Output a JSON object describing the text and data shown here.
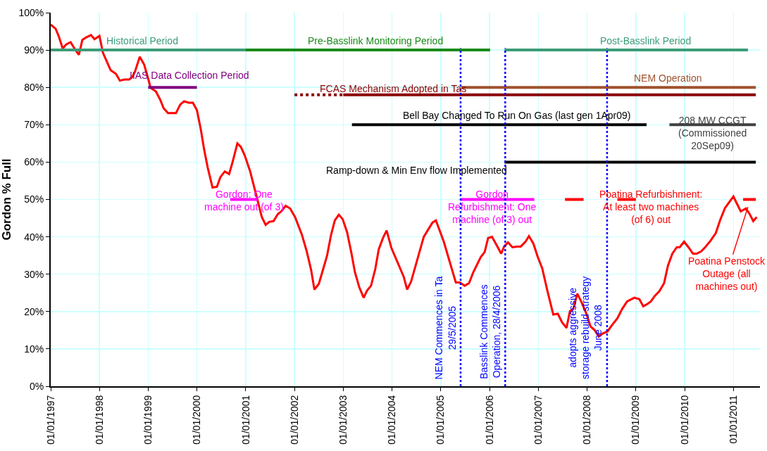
{
  "chart_data": {
    "type": "line",
    "ylabel": "Gordon % Full",
    "xlim": [
      "1997-01-01",
      "2011-07-19"
    ],
    "xticks": [
      {
        "value": "1997-01-01",
        "label": "01/01/1997"
      },
      {
        "value": "1998-01-01",
        "label": "01/01/1998"
      },
      {
        "value": "1999-01-01",
        "label": "01/01/1999"
      },
      {
        "value": "2000-01-01",
        "label": "01/01/2000"
      },
      {
        "value": "2001-01-01",
        "label": "01/01/2001"
      },
      {
        "value": "2002-01-01",
        "label": "01/01/2002"
      },
      {
        "value": "2003-01-01",
        "label": "01/01/2003"
      },
      {
        "value": "2004-01-01",
        "label": "01/01/2004"
      },
      {
        "value": "2005-01-01",
        "label": "01/01/2005"
      },
      {
        "value": "2006-01-01",
        "label": "01/01/2006"
      },
      {
        "value": "2007-01-01",
        "label": "01/01/2007"
      },
      {
        "value": "2008-01-01",
        "label": "01/01/2008"
      },
      {
        "value": "2009-01-01",
        "label": "01/01/2009"
      },
      {
        "value": "2010-01-01",
        "label": "01/01/2010"
      },
      {
        "value": "2011-01-01",
        "label": "01/01/2011"
      }
    ],
    "ylim": [
      0,
      100
    ],
    "yticks": [
      {
        "value": 0,
        "label": "0%"
      },
      {
        "value": 10,
        "label": "10%"
      },
      {
        "value": 20,
        "label": "20%"
      },
      {
        "value": 30,
        "label": "30%"
      },
      {
        "value": 40,
        "label": "40%"
      },
      {
        "value": 50,
        "label": "50%"
      },
      {
        "value": 60,
        "label": "60%"
      },
      {
        "value": 70,
        "label": "70%"
      },
      {
        "value": 80,
        "label": "80%"
      },
      {
        "value": 90,
        "label": "90%"
      },
      {
        "value": 100,
        "label": "100%"
      }
    ],
    "grid": true,
    "legend": false,
    "marker": "none",
    "line_style": "solid",
    "series": [
      {
        "color": "#ff0000",
        "x": [
          "1997-01-01",
          "1997-02-07",
          "1997-03-04",
          "1997-04-01",
          "1997-04-27",
          "1997-05-30",
          "1997-06-28",
          "1997-07-31",
          "1997-08-26",
          "1997-09-24",
          "1997-10-30",
          "1997-11-25",
          "1998-01-01",
          "1998-01-27",
          "1998-02-28",
          "1998-03-26",
          "1998-05-05",
          "1998-06-03",
          "1998-07-06",
          "1998-08-11",
          "1998-09-02",
          "1998-09-24",
          "1998-10-30",
          "1998-12-02",
          "1999-01-01",
          "1999-01-19",
          "1999-02-28",
          "1999-04-01",
          "1999-04-27",
          "1999-05-30",
          "1999-07-28",
          "1999-08-29",
          "1999-09-27",
          "1999-10-30",
          "1999-12-02",
          "2000-01-01",
          "2000-01-30",
          "2000-02-25",
          "2000-03-22",
          "2000-04-27",
          "2000-05-30",
          "2000-06-25",
          "2000-07-28",
          "2000-08-29",
          "2000-09-24",
          "2000-10-30",
          "2000-11-25",
          "2000-12-24",
          "2001-02-03",
          "2001-05-01",
          "2001-05-30",
          "2001-06-25",
          "2001-07-28",
          "2001-08-29",
          "2001-09-24",
          "2001-10-27",
          "2001-11-29",
          "2002-01-05",
          "2002-02-25",
          "2002-04-01",
          "2002-05-05",
          "2002-05-30",
          "2002-07-02",
          "2002-08-04",
          "2002-09-02",
          "2002-10-01",
          "2002-10-30",
          "2002-11-29",
          "2002-12-28",
          "2003-01-30",
          "2003-03-04",
          "2003-03-29",
          "2003-05-01",
          "2003-06-03",
          "2003-06-28",
          "2003-07-28",
          "2003-08-29",
          "2003-09-24",
          "2003-10-27",
          "2003-11-22",
          "2003-12-28",
          "2004-03-29",
          "2004-04-23",
          "2004-05-23",
          "2004-08-26",
          "2004-10-30",
          "2004-11-25",
          "2005-01-23",
          "2005-04-23",
          "2005-05-23",
          "2005-06-28",
          "2005-07-31",
          "2005-09-02",
          "2005-10-27",
          "2005-11-25",
          "2005-12-21",
          "2006-01-19",
          "2006-02-25",
          "2006-03-29",
          "2006-04-20",
          "2006-05-19",
          "2006-06-21",
          "2006-07-24",
          "2006-08-22",
          "2006-09-27",
          "2006-10-23",
          "2006-11-25",
          "2006-12-28",
          "2007-01-30",
          "2007-03-11",
          "2007-04-23",
          "2007-05-27",
          "2007-06-28",
          "2007-07-31",
          "2007-08-26",
          "2007-09-20",
          "2007-10-20",
          "2007-11-18",
          "2007-12-24",
          "2008-01-27",
          "2008-02-28",
          "2008-03-29",
          "2008-04-27",
          "2008-06-03",
          "2008-06-28",
          "2008-08-15",
          "2008-09-20",
          "2008-10-27",
          "2008-12-21",
          "2009-01-27",
          "2009-02-25",
          "2009-03-26",
          "2009-04-23",
          "2009-05-23",
          "2009-06-25",
          "2009-07-31",
          "2009-08-29",
          "2009-10-01",
          "2009-11-03",
          "2009-11-25",
          "2009-12-28",
          "2010-01-30",
          "2010-03-04",
          "2010-04-01",
          "2010-05-05",
          "2010-06-03",
          "2010-07-13",
          "2010-08-22",
          "2010-09-24",
          "2010-10-30",
          "2011-01-01",
          "2011-01-23",
          "2011-02-25",
          "2011-04-05",
          "2011-05-01",
          "2011-05-30",
          "2011-06-25"
        ],
        "values": [
          96.8,
          95.7,
          93.5,
          90.4,
          91.5,
          92.1,
          90.4,
          88.7,
          92.7,
          93.4,
          94,
          92.9,
          93.8,
          89.3,
          86.7,
          84.6,
          83.6,
          81.8,
          82.1,
          82.1,
          82.7,
          84.2,
          88.2,
          86.1,
          82.3,
          79.9,
          78.9,
          76.7,
          74.4,
          73.1,
          73.1,
          75.4,
          76.3,
          75.9,
          75.9,
          73.9,
          68.8,
          63.2,
          58.5,
          53.2,
          53.4,
          56,
          57.5,
          56.8,
          60,
          65,
          64.1,
          61.8,
          57.5,
          45.3,
          43.2,
          44,
          44.2,
          46.1,
          46.8,
          48.3,
          47.6,
          45.3,
          40.6,
          36.3,
          31.2,
          25.9,
          27.4,
          31.4,
          35,
          40.4,
          44.4,
          45.9,
          44.7,
          41.2,
          35.5,
          30.6,
          26.5,
          23.7,
          25.6,
          26.9,
          31.4,
          36.7,
          39.8,
          41.7,
          37,
          29.3,
          25.9,
          28,
          40,
          43.8,
          44.4,
          38.7,
          27.8,
          27.8,
          26.9,
          27.6,
          30.6,
          34.6,
          35.9,
          39.7,
          40,
          37.6,
          35.5,
          37.4,
          38.5,
          37.2,
          37.4,
          37.4,
          38.7,
          40.2,
          38.2,
          34.6,
          31.6,
          25.4,
          19.2,
          19.4,
          17.1,
          15.6,
          20.1,
          20.7,
          24.8,
          22.7,
          19.7,
          16,
          15,
          13.3,
          14.1,
          14.7,
          16,
          18.2,
          20.7,
          22.7,
          23.7,
          23.3,
          21.4,
          22,
          22.7,
          24.2,
          25.4,
          27.6,
          32.3,
          35.5,
          37.2,
          37.2,
          38.7,
          37.2,
          35.5,
          35.5,
          36.1,
          37.2,
          38.9,
          41,
          44.5,
          47.7,
          50.8,
          49.2,
          46.8,
          47.6,
          46.2,
          44.2,
          45.3
        ]
      },
      {
        "name": "Historical Period",
        "color": "#3c9c78",
        "x": [
          "1997-01-01",
          "2001-01-01"
        ],
        "values": [
          90,
          90
        ]
      },
      {
        "name": "Pre-Basslink Monitoring Period",
        "color": "#1a8a1a",
        "x": [
          "2001-01-01",
          "2006-01-05"
        ],
        "values": [
          90,
          90
        ]
      },
      {
        "name": "Post-Basslink Period",
        "color": "#3c9c78",
        "x": [
          "2006-04-23",
          "2011-04-20"
        ],
        "values": [
          90,
          90
        ]
      },
      {
        "name": "IIAS Data Collection Period",
        "color": "#800080",
        "x": [
          "1999-01-01",
          "2000-01-01"
        ],
        "values": [
          80,
          80
        ]
      },
      {
        "color": "#8b0000",
        "line_style": "dotted",
        "x": [
          "2002-01-01",
          "2003-01-01"
        ],
        "values": [
          78,
          78
        ]
      },
      {
        "name": "FCAS Mechanism Adopted in Tas",
        "color": "#8b0000",
        "x": [
          "2003-01-01",
          "2011-06-18"
        ],
        "values": [
          78,
          78
        ]
      },
      {
        "name": "NEM Operation",
        "color": "#a0522d",
        "x": [
          "2005-06-03",
          "2011-06-18"
        ],
        "values": [
          80,
          80
        ]
      },
      {
        "name": "Bell Bay Changed To Run On Gas (last gen 1Apr09)",
        "color": "#000000",
        "x": [
          "2003-03-07",
          "2009-03-22"
        ],
        "values": [
          70,
          70
        ]
      },
      {
        "name": "208 MW CCGT\n(Commissioned\n20Sep09)",
        "color": "#404040",
        "x": [
          "2009-09-09",
          "2011-06-18"
        ],
        "values": [
          70,
          70
        ]
      },
      {
        "name": "Ramp-down & Min Env flow Implemented",
        "color": "#000000",
        "x": [
          "2006-04-23",
          "2011-06-18"
        ],
        "values": [
          60,
          60
        ]
      },
      {
        "name": "Gordon: One\nmachine out (of 3)",
        "color": "#ff00ff",
        "x": [
          "2000-09-06",
          "2001-04-01"
        ],
        "values": [
          50,
          50
        ]
      },
      {
        "name": "Gordon\nRefurbishment: One\nmachine (of 3) out",
        "color": "#ff00ff",
        "x": [
          "2005-05-30",
          "2006-12-02"
        ],
        "values": [
          50,
          50
        ]
      },
      {
        "name": "Poatina Refurbishment:\nAt least two machines\n(of 6) out",
        "color": "#ff0000",
        "x": [
          "2007-07-20",
          "2007-12-06",
          "2007-12-09",
          "2008-08-15",
          "2009-01-01",
          "2009-01-05",
          "2011-03-15",
          "2011-06-18"
        ],
        "values": [
          50,
          50,
          null,
          50,
          50,
          null,
          50,
          50
        ]
      }
    ],
    "ref_lines": [
      {
        "axis": "x",
        "value": "2005-05-29",
        "label": "NEM Commences in Ta\n29/5/2005",
        "color": "#0000ff",
        "line_style": "dotted"
      },
      {
        "axis": "x",
        "value": "2006-04-28",
        "label": "Basslink Commences\nOperation, 28/4/2006",
        "color": "#0000ff",
        "line_style": "dotted"
      },
      {
        "axis": "x",
        "value": "2008-05-30",
        "label": "adopts aggressive\nstorage rebuild strategy\nJune 2008",
        "color": "#0000ff",
        "line_style": "dotted"
      }
    ],
    "annotations": [
      {
        "text": "Poatina Penstock\nOutage (all\nmachines out)",
        "x": "2011-04-20",
        "y": 48
      }
    ]
  }
}
